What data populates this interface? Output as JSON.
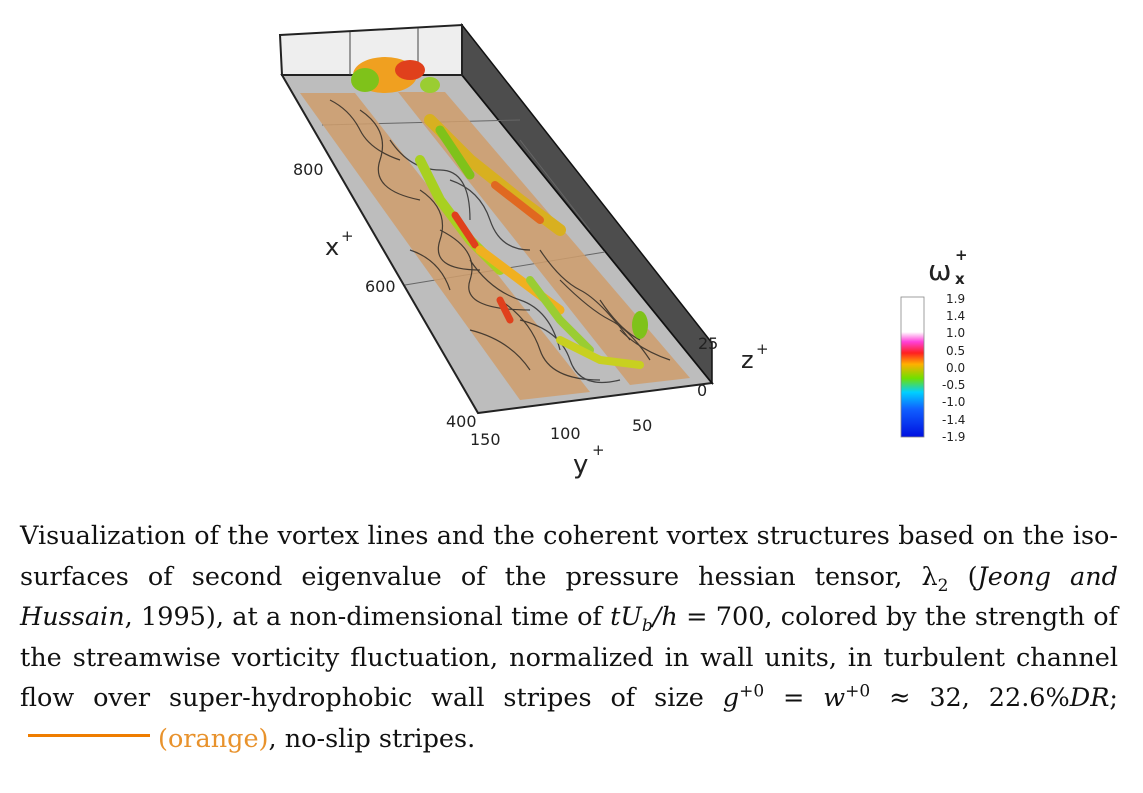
{
  "figure": {
    "axes": {
      "x_label": "x",
      "x_label_sup": "+",
      "x_ticks": [
        "800",
        "600",
        "400"
      ],
      "y_label": "y",
      "y_label_sup": "+",
      "y_ticks": [
        "150",
        "100",
        "50"
      ],
      "z_label": "z",
      "z_label_sup": "+",
      "z_ticks": [
        "25",
        "0"
      ]
    },
    "colorbar": {
      "title": "ω",
      "title_sup": "+",
      "title_sub": "x",
      "levels": [
        "1.9",
        "1.4",
        "1.0",
        "0.5",
        "0.0",
        "-0.5",
        "-1.0",
        "-1.4",
        "-1.9"
      ],
      "colors": [
        "#ffffff",
        "#ffffff",
        "#ff3bd2",
        "#ff2a2a",
        "#ffb400",
        "#7ce000",
        "#00c8ff",
        "#1060ff",
        "#0010e6"
      ]
    },
    "colors": {
      "stripe": "#cf9e6c",
      "floor": "#b8b8b8",
      "wall": "#555555",
      "vortex_green": "#7fc21a",
      "vortex_orange": "#f0a020",
      "vortex_red": "#e0401c"
    }
  },
  "caption": {
    "p1": "Visualization of the vortex lines and the coherent vortex structures based on the iso-surfaces of second eigenvalue of the pressure hessian tensor, λ",
    "p1_sub": "2",
    "ref_open": " (",
    "ref_authors": "Jeong and Hussain",
    "ref_year": ", 1995), at a non-dimensional time of ",
    "time_t": "tU",
    "time_sub": "b",
    "time_h": "/h",
    "time_eq": " = 700, colored by the strength of the streamwise vorticity fluctuation, normalized in wall units, in turbulent channel flow over super-hydrophobic wall stripes of size ",
    "g": "g",
    "g_sup": "+0",
    "eq": " = ",
    "w": "w",
    "w_sup": "+0",
    "approx": " ≈ 32, 22.6%",
    "dr": "DR",
    "semi": ";",
    "orange": "(orange)",
    "tail": ", no-slip stripes."
  }
}
